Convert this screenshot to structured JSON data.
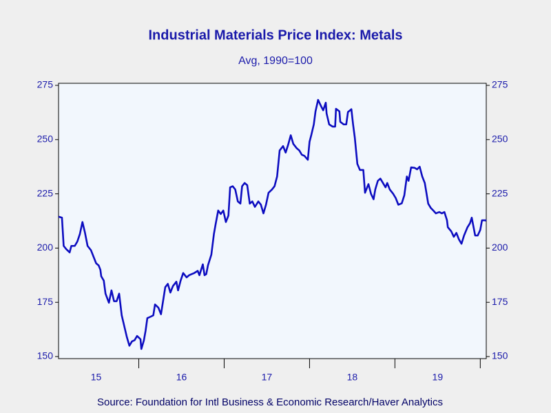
{
  "chart_data": {
    "type": "line",
    "title": "Industrial Materials Price Index: Metals",
    "subtitle": "Avg, 1990=100",
    "source": "Source:  Foundation for Intl Business & Economic Research/Haver Analytics",
    "color": "#0c0cc0",
    "x": [
      2015.06,
      2015.1,
      2015.12,
      2015.15,
      2015.19,
      2015.21,
      2015.25,
      2015.28,
      2015.31,
      2015.34,
      2015.37,
      2015.4,
      2015.44,
      2015.47,
      2015.5,
      2015.53,
      2015.55,
      2015.56,
      2015.59,
      2015.61,
      2015.65,
      2015.68,
      2015.71,
      2015.74,
      2015.77,
      2015.8,
      2015.83,
      2015.86,
      2015.89,
      2015.92,
      2015.95,
      2015.98,
      2016.02,
      2016.03,
      2016.06,
      2016.08,
      2016.1,
      2016.14,
      2016.17,
      2016.19,
      2016.23,
      2016.26,
      2016.28,
      2016.31,
      2016.34,
      2016.37,
      2016.4,
      2016.44,
      2016.46,
      2016.49,
      2016.52,
      2016.56,
      2016.59,
      2016.62,
      2016.65,
      2016.69,
      2016.71,
      2016.75,
      2016.77,
      2016.79,
      2016.81,
      2016.85,
      2016.88,
      2016.9,
      2016.93,
      2016.96,
      2016.99,
      2017.02,
      2017.05,
      2017.07,
      2017.1,
      2017.13,
      2017.16,
      2017.19,
      2017.21,
      2017.24,
      2017.27,
      2017.3,
      2017.33,
      2017.36,
      2017.4,
      2017.43,
      2017.46,
      2017.49,
      2017.52,
      2017.56,
      2017.59,
      2017.62,
      2017.65,
      2017.69,
      2017.72,
      2017.75,
      2017.78,
      2017.81,
      2017.85,
      2017.88,
      2017.91,
      2017.94,
      2017.98,
      2018.0,
      2018.02,
      2018.05,
      2018.07,
      2018.1,
      2018.14,
      2018.16,
      2018.19,
      2018.2,
      2018.23,
      2018.27,
      2018.3,
      2018.31,
      2018.35,
      2018.36,
      2018.4,
      2018.43,
      2018.45,
      2018.49,
      2018.51,
      2018.53,
      2018.56,
      2018.59,
      2018.63,
      2018.65,
      2018.69,
      2018.72,
      2018.75,
      2018.77,
      2018.8,
      2018.83,
      2018.86,
      2018.89,
      2018.91,
      2018.94,
      2018.98,
      2019.01,
      2019.04,
      2019.08,
      2019.11,
      2019.14,
      2019.16,
      2019.19,
      2019.23,
      2019.26,
      2019.29,
      2019.32,
      2019.35,
      2019.39,
      2019.42,
      2019.45,
      2019.48,
      2019.52,
      2019.55,
      2019.58,
      2019.61,
      2019.62,
      2019.66,
      2019.69,
      2019.72,
      2019.75,
      2019.78,
      2019.81,
      2019.85,
      2019.88,
      2019.9,
      2019.94,
      2019.97,
      2020.0,
      2020.02,
      2020.06,
      2020.07
    ],
    "values": [
      214.5,
      214,
      201,
      199.5,
      198,
      201,
      201,
      203,
      206.5,
      212,
      207,
      201,
      199,
      196,
      193,
      192,
      190,
      187,
      185,
      179,
      174.8,
      180.5,
      175.5,
      175.5,
      179,
      169,
      164,
      159,
      155,
      157,
      157.5,
      159.5,
      158,
      153.5,
      157.5,
      162,
      167.7,
      168.4,
      169,
      174,
      172.5,
      169.5,
      174.5,
      182,
      183.5,
      179.5,
      182.5,
      184.5,
      180.5,
      185,
      188.5,
      186.5,
      187.5,
      188,
      188.5,
      189.5,
      187.5,
      192.5,
      187.5,
      188,
      192,
      197,
      206.5,
      211,
      217.3,
      215.7,
      217.3,
      212,
      215,
      228,
      228.5,
      227,
      221.5,
      220.5,
      228.5,
      230,
      229,
      220.5,
      221.5,
      219,
      221.5,
      220,
      216,
      220,
      225.5,
      227,
      228.5,
      233,
      245,
      247,
      244,
      247.7,
      252,
      248,
      246,
      245,
      243,
      242.5,
      240.7,
      249,
      252,
      257,
      263,
      268.3,
      265,
      263.5,
      267,
      262,
      257,
      256,
      256,
      264.2,
      263,
      258.2,
      257,
      257,
      262.7,
      264,
      257,
      251,
      238.8,
      236,
      236,
      225.5,
      229.5,
      225,
      222.5,
      227,
      231,
      232,
      230,
      228,
      230,
      227,
      225,
      223,
      220,
      220.6,
      224.3,
      233,
      231,
      237.2,
      237,
      236.3,
      237.5,
      233,
      230,
      220.5,
      218.5,
      217.3,
      216,
      216.6,
      216,
      216.6,
      212.8,
      209.6,
      207.7,
      205.2,
      207,
      204,
      202,
      205.8,
      209.6,
      211.5,
      214,
      205.8,
      205.8,
      208.4,
      212.8,
      212.8,
      212.6
    ],
    "xlim": [
      2015.06,
      2020.07
    ],
    "xticks": [
      {
        "value": 2015.5,
        "label": "15"
      },
      {
        "value": 2016.5,
        "label": "16"
      },
      {
        "value": 2017.5,
        "label": "17"
      },
      {
        "value": 2018.5,
        "label": "18"
      },
      {
        "value": 2019.5,
        "label": "19"
      }
    ],
    "ylim": [
      150,
      275
    ],
    "yticks": [
      150,
      175,
      200,
      225,
      250,
      275
    ],
    "y2lim": [
      150,
      275
    ],
    "y2ticks": [
      150,
      175,
      200,
      225,
      250,
      275
    ]
  }
}
